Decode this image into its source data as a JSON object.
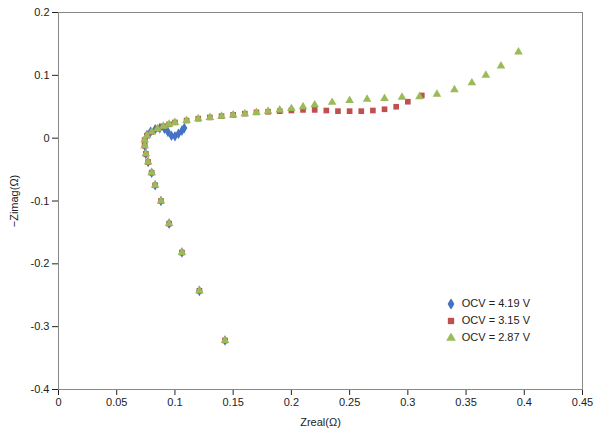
{
  "chart_data": {
    "type": "scatter",
    "x_label": "Zreal(Ω)",
    "y_label": "−Zimag(Ω)",
    "xlim": [
      0,
      0.45
    ],
    "xticks": [
      0,
      0.05,
      0.1,
      0.15,
      0.2,
      0.25,
      0.3,
      0.35,
      0.4,
      0.45
    ],
    "ylim": [
      -0.4,
      0.2
    ],
    "yticks": [
      -0.4,
      -0.3,
      -0.2,
      -0.1,
      0,
      0.1,
      0.2
    ],
    "grid": false,
    "legend": "lower right",
    "series": [
      {
        "name": "OCV = 4.19 V",
        "color": "#4472c4",
        "marker": "diamond",
        "x": [
          0.143,
          0.121,
          0.106,
          0.095,
          0.088,
          0.083,
          0.08,
          0.077,
          0.075,
          0.074,
          0.074,
          0.076,
          0.079,
          0.083,
          0.087,
          0.091,
          0.094,
          0.097,
          0.1,
          0.103,
          0.106,
          0.108
        ],
        "values": [
          -0.322,
          -0.243,
          -0.182,
          -0.136,
          -0.1,
          -0.075,
          -0.055,
          -0.038,
          -0.025,
          -0.012,
          -0.003,
          0.005,
          0.01,
          0.014,
          0.016,
          0.015,
          0.01,
          0.004,
          0.003,
          0.007,
          0.012,
          0.016
        ]
      },
      {
        "name": "OCV = 3.15 V",
        "color": "#c0504d",
        "marker": "square",
        "x": [
          0.143,
          0.121,
          0.106,
          0.095,
          0.088,
          0.083,
          0.08,
          0.077,
          0.075,
          0.074,
          0.074,
          0.076,
          0.08,
          0.085,
          0.09,
          0.095,
          0.1,
          0.11,
          0.12,
          0.13,
          0.14,
          0.15,
          0.16,
          0.17,
          0.18,
          0.19,
          0.2,
          0.21,
          0.22,
          0.23,
          0.24,
          0.25,
          0.26,
          0.27,
          0.28,
          0.29,
          0.3,
          0.312
        ],
        "values": [
          -0.322,
          -0.243,
          -0.182,
          -0.136,
          -0.1,
          -0.075,
          -0.055,
          -0.038,
          -0.025,
          -0.012,
          -0.003,
          0.004,
          0.01,
          0.015,
          0.019,
          0.022,
          0.025,
          0.028,
          0.031,
          0.033,
          0.035,
          0.037,
          0.039,
          0.041,
          0.042,
          0.043,
          0.044,
          0.045,
          0.045,
          0.044,
          0.043,
          0.043,
          0.043,
          0.044,
          0.046,
          0.05,
          0.058,
          0.068
        ]
      },
      {
        "name": "OCV = 2.87 V",
        "color": "#9bbb59",
        "marker": "triangle",
        "x": [
          0.143,
          0.121,
          0.106,
          0.095,
          0.088,
          0.083,
          0.08,
          0.077,
          0.075,
          0.074,
          0.074,
          0.076,
          0.08,
          0.085,
          0.09,
          0.095,
          0.1,
          0.11,
          0.12,
          0.13,
          0.14,
          0.15,
          0.16,
          0.17,
          0.18,
          0.19,
          0.2,
          0.21,
          0.22,
          0.235,
          0.25,
          0.265,
          0.28,
          0.295,
          0.31,
          0.325,
          0.34,
          0.355,
          0.367,
          0.38,
          0.395
        ],
        "values": [
          -0.322,
          -0.243,
          -0.182,
          -0.136,
          -0.1,
          -0.075,
          -0.055,
          -0.038,
          -0.025,
          -0.012,
          -0.003,
          0.004,
          0.01,
          0.015,
          0.019,
          0.022,
          0.025,
          0.028,
          0.031,
          0.033,
          0.035,
          0.037,
          0.039,
          0.041,
          0.043,
          0.045,
          0.047,
          0.05,
          0.053,
          0.057,
          0.06,
          0.062,
          0.063,
          0.065,
          0.066,
          0.07,
          0.077,
          0.088,
          0.1,
          0.115,
          0.137
        ]
      }
    ]
  }
}
